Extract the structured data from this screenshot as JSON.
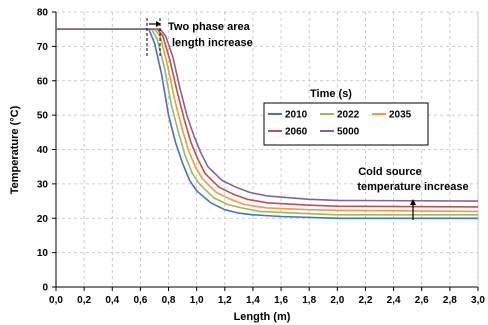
{
  "chart_data": {
    "type": "line",
    "title": "",
    "xlabel": "Length (m)",
    "ylabel": "Temperature (°C)",
    "xlim": [
      0.0,
      3.0
    ],
    "ylim": [
      0,
      80
    ],
    "grid": true,
    "x_ticks": [
      "0,0",
      "0,2",
      "0,4",
      "0,6",
      "0,8",
      "1,0",
      "1,2",
      "1,4",
      "1,6",
      "1,8",
      "2,0",
      "2,2",
      "2,4",
      "2,6",
      "2,8",
      "3,0"
    ],
    "y_ticks": [
      "0",
      "10",
      "20",
      "30",
      "40",
      "50",
      "60",
      "70",
      "80"
    ],
    "legend": {
      "title": "Time (s)",
      "placement": "center"
    },
    "annotations": {
      "two_phase_line1": "Two phase area",
      "two_phase_line2": "length increase",
      "cold_line1": "Cold source",
      "cold_line2": "temperature increase"
    },
    "series": [
      {
        "name": "2010",
        "color": "#4472C4",
        "points": [
          [
            0.0,
            75
          ],
          [
            0.66,
            75
          ],
          [
            0.7,
            71
          ],
          [
            0.75,
            62
          ],
          [
            0.8,
            50
          ],
          [
            0.85,
            42
          ],
          [
            0.9,
            36
          ],
          [
            0.95,
            31
          ],
          [
            1.0,
            28
          ],
          [
            1.1,
            24.5
          ],
          [
            1.2,
            22.5
          ],
          [
            1.3,
            21.5
          ],
          [
            1.4,
            21
          ],
          [
            1.6,
            20.5
          ],
          [
            2.0,
            20
          ],
          [
            3.0,
            20
          ]
        ]
      },
      {
        "name": "2022",
        "color": "#9BBB59",
        "points": [
          [
            0.0,
            75
          ],
          [
            0.68,
            75
          ],
          [
            0.72,
            72
          ],
          [
            0.77,
            64
          ],
          [
            0.82,
            53
          ],
          [
            0.87,
            45
          ],
          [
            0.92,
            38
          ],
          [
            0.97,
            33
          ],
          [
            1.02,
            30
          ],
          [
            1.12,
            26
          ],
          [
            1.22,
            24
          ],
          [
            1.32,
            23
          ],
          [
            1.45,
            22
          ],
          [
            1.7,
            21.5
          ],
          [
            2.0,
            21
          ],
          [
            3.0,
            21
          ]
        ]
      },
      {
        "name": "2035",
        "color": "#F79646",
        "points": [
          [
            0.0,
            75
          ],
          [
            0.7,
            75
          ],
          [
            0.74,
            73
          ],
          [
            0.79,
            65
          ],
          [
            0.84,
            55
          ],
          [
            0.89,
            47
          ],
          [
            0.94,
            40
          ],
          [
            0.99,
            35
          ],
          [
            1.04,
            31.5
          ],
          [
            1.14,
            27.5
          ],
          [
            1.24,
            25.5
          ],
          [
            1.34,
            24
          ],
          [
            1.5,
            23
          ],
          [
            1.8,
            22.5
          ],
          [
            2.0,
            22.3
          ],
          [
            3.0,
            22
          ]
        ]
      },
      {
        "name": "2060",
        "color": "#C0504D",
        "points": [
          [
            0.0,
            75
          ],
          [
            0.72,
            75
          ],
          [
            0.76,
            73
          ],
          [
            0.81,
            66
          ],
          [
            0.86,
            57
          ],
          [
            0.91,
            49
          ],
          [
            0.96,
            42
          ],
          [
            1.01,
            37
          ],
          [
            1.06,
            33
          ],
          [
            1.16,
            29
          ],
          [
            1.26,
            27
          ],
          [
            1.36,
            25.5
          ],
          [
            1.5,
            24.5
          ],
          [
            1.8,
            23.8
          ],
          [
            2.0,
            23.5
          ],
          [
            3.0,
            23.3
          ]
        ]
      },
      {
        "name": "5000",
        "color": "#8064A2",
        "points": [
          [
            0.0,
            75
          ],
          [
            0.74,
            75
          ],
          [
            0.78,
            73
          ],
          [
            0.83,
            67
          ],
          [
            0.88,
            58
          ],
          [
            0.93,
            50
          ],
          [
            0.98,
            44
          ],
          [
            1.03,
            39
          ],
          [
            1.08,
            35
          ],
          [
            1.18,
            31
          ],
          [
            1.28,
            29
          ],
          [
            1.38,
            27.5
          ],
          [
            1.5,
            26.5
          ],
          [
            1.8,
            25.5
          ],
          [
            2.0,
            25.2
          ],
          [
            3.0,
            25
          ]
        ]
      }
    ]
  }
}
